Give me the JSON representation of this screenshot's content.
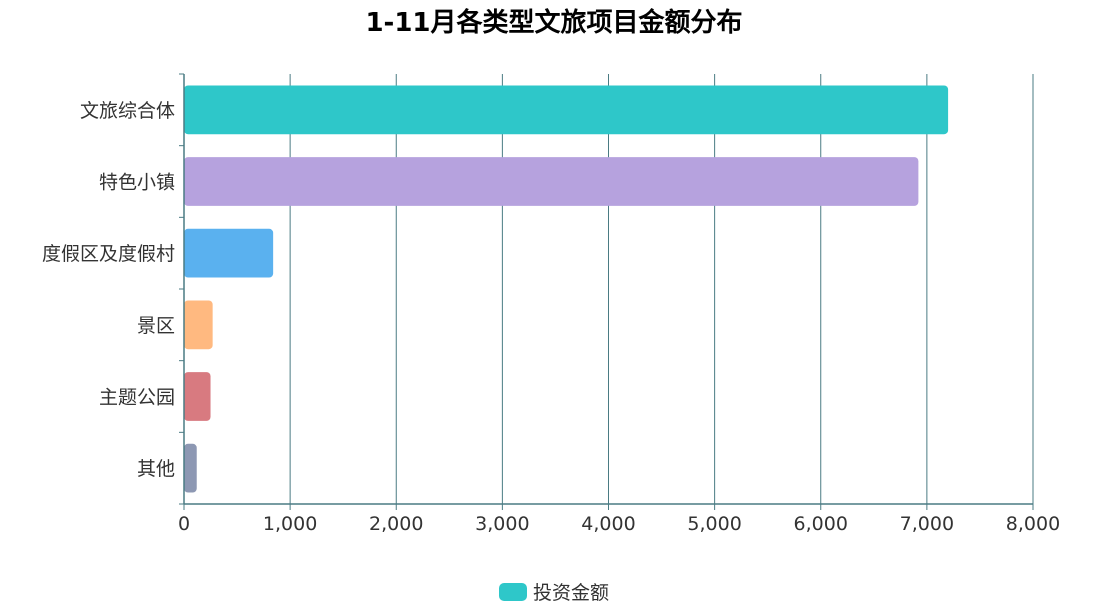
{
  "chart_data": {
    "type": "bar",
    "orientation": "horizontal",
    "title": "1-11月各类型文旅项目金额分布",
    "categories": [
      "文旅综合体",
      "特色小镇",
      "度假区及度假村",
      "景区",
      "主题公园",
      "其他"
    ],
    "series": [
      {
        "name": "投资金额",
        "values": [
          7200,
          6920,
          840,
          270,
          250,
          120
        ]
      }
    ],
    "bar_colors": [
      "#2ec7c9",
      "#b6a2de",
      "#5ab1ef",
      "#ffb980",
      "#d87a80",
      "#8d98b3"
    ],
    "legend_color": "#2ec7c9",
    "xlim": [
      0,
      8000
    ],
    "xticks": [
      "0",
      "1,000",
      "2,000",
      "3,000",
      "4,000",
      "5,000",
      "6,000",
      "7,000",
      "8,000"
    ],
    "xlabel": "",
    "ylabel": "",
    "grid": true,
    "legend_position": "bottom",
    "axis_color": "#4a7b83"
  }
}
